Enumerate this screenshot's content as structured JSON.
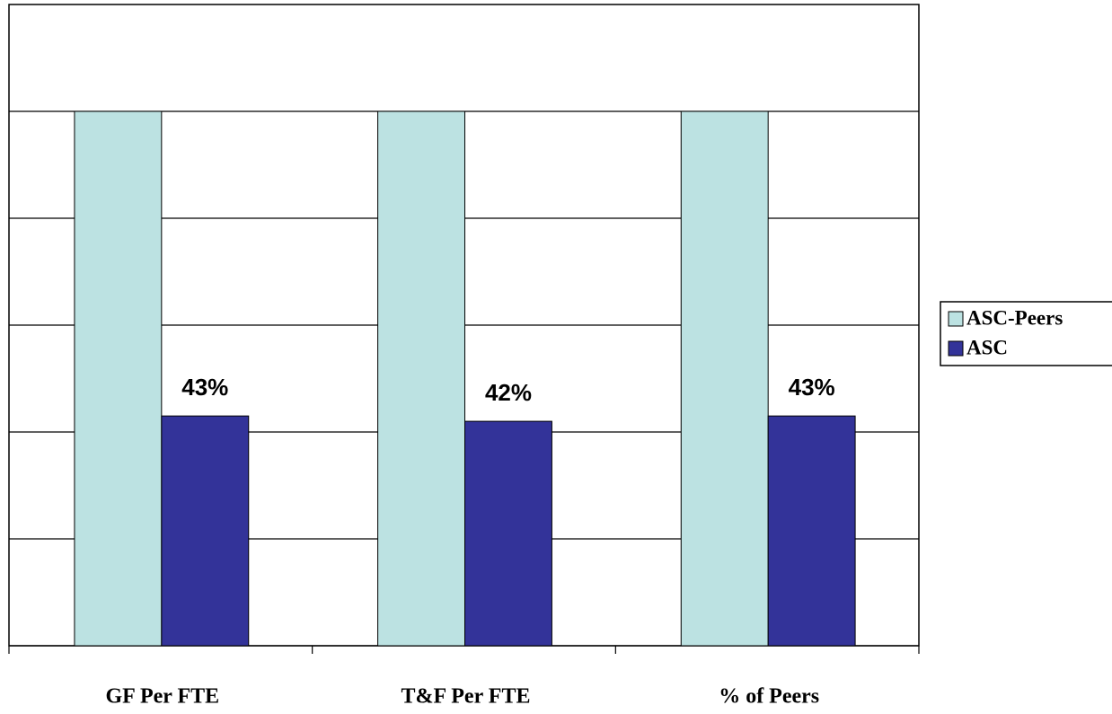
{
  "chart_data": {
    "type": "bar",
    "categories": [
      "GF Per FTE",
      "T&F Per FTE",
      "% of Peers"
    ],
    "series": [
      {
        "name": "ASC-Peers",
        "color": "#bce2e2",
        "values": [
          100,
          100,
          100
        ]
      },
      {
        "name": "ASC",
        "color": "#333399",
        "values": [
          43,
          42,
          43
        ],
        "value_labels": [
          "43%",
          "42%",
          "43%"
        ]
      }
    ],
    "ylim": [
      0,
      120
    ],
    "yticks": [
      0,
      20,
      40,
      60,
      80,
      100
    ],
    "grid": true,
    "legend": "right"
  }
}
